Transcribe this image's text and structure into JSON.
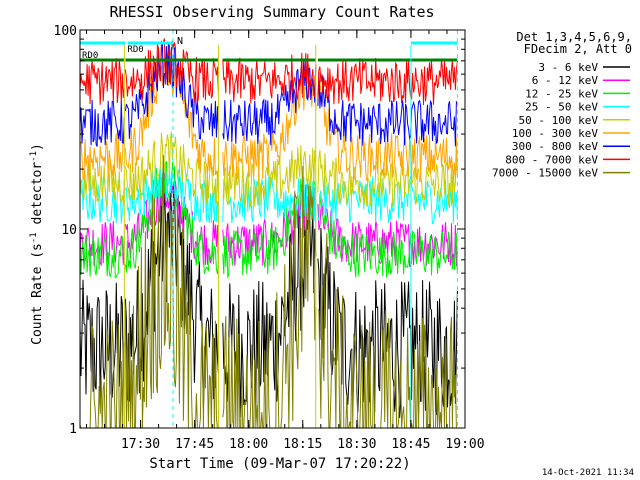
{
  "chart_data": {
    "type": "line",
    "title": "RHESSI Observing Summary Count Rates",
    "xlabel": "Start Time (09-Mar-07 17:20:22)",
    "ylabel_main": "Count Rate (s",
    "ylabel_sup1": "-1",
    "ylabel_mid": " detector",
    "ylabel_sup2": "-1",
    "ylabel_end": ")",
    "yscale": "log",
    "ylim": [
      1,
      100
    ],
    "xlim_minutes": [
      17.22,
      19.0
    ],
    "x_ticks": [
      "17:30",
      "17:45",
      "18:00",
      "18:15",
      "18:30",
      "18:45",
      "19:00"
    ],
    "x_tick_minutes": [
      17.5,
      17.75,
      18.0,
      18.25,
      18.5,
      18.75,
      19.0
    ],
    "y_ticks": [
      "1",
      "10",
      "100"
    ],
    "y_tick_values": [
      1,
      10,
      100
    ],
    "legend_header": [
      "Det 1,3,4,5,6,9,",
      "FDecim 2, Att 0"
    ],
    "series": [
      {
        "name": "3 - 6 keV",
        "color": "#000000",
        "peak_hours": [
          17.63,
          18.27
        ],
        "peaks": [
          9.5,
          7.0
        ],
        "floor": 2.5
      },
      {
        "name": "6 - 12 keV",
        "color": "#ff00ff",
        "peak_hours": [
          17.62,
          18.27
        ],
        "peaks": [
          15.0,
          13.0
        ],
        "floor": 8.5
      },
      {
        "name": "12 - 25 keV",
        "color": "#00ee00",
        "peak_hours": [
          17.62,
          18.27
        ],
        "peaks": [
          18.0,
          15.0
        ],
        "floor": 7.5
      },
      {
        "name": "25 - 50 keV",
        "color": "#00ffff",
        "peak_hours": [
          17.62,
          18.27
        ],
        "peaks": [
          17.0,
          13.0
        ],
        "floor": 14.0
      },
      {
        "name": "50 - 100 keV",
        "color": "#cccc00",
        "peak_hours": [
          17.62,
          18.27
        ],
        "peaks": [
          24.0,
          21.0
        ],
        "floor": 17.0
      },
      {
        "name": "100 - 300 keV",
        "color": "#ffa500",
        "peak_hours": [
          17.62,
          18.27
        ],
        "peaks": [
          65.0,
          53.0
        ],
        "floor": 23.0
      },
      {
        "name": "300 - 800 keV",
        "color": "#0000ff",
        "peak_hours": [
          17.62,
          18.27
        ],
        "peaks": [
          68.0,
          56.0
        ],
        "floor": 34.0
      },
      {
        "name": "800 - 7000 keV",
        "color": "#ff0000",
        "peak_hours": [
          17.62,
          18.27
        ],
        "peaks": [
          70.0,
          60.0
        ],
        "floor": 55.0
      },
      {
        "name": "7000 - 15000 keV",
        "color": "#808000",
        "peak_hours": [
          17.6,
          18.27
        ],
        "peaks": [
          6.0,
          6.0
        ],
        "floor": 1.0
      }
    ],
    "segments": [
      [
        17.22,
        17.425
      ],
      [
        17.43,
        17.86
      ],
      [
        17.88,
        18.31
      ],
      [
        18.32,
        18.965
      ]
    ],
    "annotations": {
      "rd0_a": "RD0",
      "rd0_b": "RD0",
      "n_label": "N"
    },
    "annotation_colors": {
      "bars": "#008000",
      "n_bar": "#00ffff"
    },
    "timestamp": "14-Oct-2021 11:34"
  }
}
